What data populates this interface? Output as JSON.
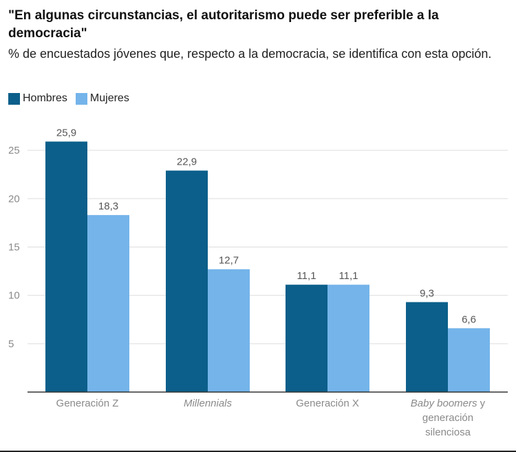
{
  "title": "\"En algunas circunstancias, el autoritarismo puede ser preferible a la democracia\"",
  "subtitle": "% de encuestados jóvenes que, respecto a la democracia, se identifica con esta opción.",
  "colors": {
    "hombres": "#0b5f8a",
    "mujeres": "#74b4ea",
    "grid": "#dddddd",
    "axis": "#333333"
  },
  "chart_data": {
    "type": "bar",
    "title": "\"En algunas circunstancias, el autoritarismo puede ser preferible a la democracia\"",
    "ylabel": "%",
    "xlabel": "",
    "ylim": [
      0,
      27.5
    ],
    "yticks": [
      5,
      10,
      15,
      20,
      25
    ],
    "categories": [
      "Generación Z",
      "Millennials",
      "Generación X",
      "Baby boomers y generación silenciosa"
    ],
    "series": [
      {
        "name": "Hombres",
        "values": [
          25.9,
          22.9,
          11.1,
          9.3
        ],
        "labels": [
          "25,9",
          "22,9",
          "11,1",
          "9,3"
        ]
      },
      {
        "name": "Mujeres",
        "values": [
          18.3,
          12.7,
          11.1,
          6.6
        ],
        "labels": [
          "18,3",
          "12,7",
          "11,1",
          "6,6"
        ]
      }
    ],
    "legend": "top-left",
    "grid": true
  },
  "category_labels": [
    {
      "lines": [
        [
          {
            "text": "Generación Z",
            "italic": false
          }
        ]
      ]
    },
    {
      "lines": [
        [
          {
            "text": "Millennials",
            "italic": true
          }
        ]
      ]
    },
    {
      "lines": [
        [
          {
            "text": "Generación X",
            "italic": false
          }
        ]
      ]
    },
    {
      "lines": [
        [
          {
            "text": "Baby boomers",
            "italic": true
          },
          {
            "text": " y",
            "italic": false
          }
        ],
        [
          {
            "text": "generación",
            "italic": false
          }
        ],
        [
          {
            "text": "silenciosa",
            "italic": false
          }
        ]
      ]
    }
  ]
}
